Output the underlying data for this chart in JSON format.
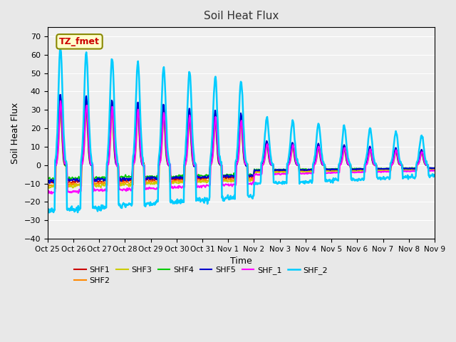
{
  "title": "Soil Heat Flux",
  "xlabel": "Time",
  "ylabel": "Soil Heat Flux",
  "ylim": [
    -40,
    75
  ],
  "yticks": [
    -40,
    -30,
    -20,
    -10,
    0,
    10,
    20,
    30,
    40,
    50,
    60,
    70
  ],
  "bg_color": "#e8e8e8",
  "plot_bg": "#f0f0f0",
  "series_colors": {
    "SHF1": "#cc0000",
    "SHF2": "#ff8800",
    "SHF3": "#cccc00",
    "SHF4": "#00cc00",
    "SHF5": "#0000cc",
    "SHF_1": "#ff00ff",
    "SHF_2": "#00ccff"
  },
  "series_lw": {
    "SHF1": 1.2,
    "SHF2": 1.2,
    "SHF3": 1.2,
    "SHF4": 1.2,
    "SHF5": 1.5,
    "SHF_1": 1.5,
    "SHF_2": 1.8
  },
  "annotation_text": "TZ_fmet",
  "annotation_color": "#cc0000",
  "annotation_bg": "#ffffcc",
  "annotation_border": "#888800",
  "x_tick_labels": [
    "Oct 25",
    "Oct 26",
    "Oct 27",
    "Oct 28",
    "Oct 29",
    "Oct 30",
    "Oct 31",
    "Nov 1",
    "Nov 2",
    "Nov 3",
    "Nov 4",
    "Nov 5",
    "Nov 6",
    "Nov 7",
    "Nov 8",
    "Nov 9"
  ],
  "n_days": 15,
  "points_per_day": 48
}
